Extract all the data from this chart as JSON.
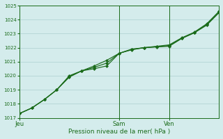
{
  "title": "",
  "xlabel": "Pression niveau de la mer( hPa )",
  "background_color": "#d4ecec",
  "grid_color": "#b8d8d8",
  "line_color": "#1a6b1a",
  "ylim": [
    1017,
    1025
  ],
  "xlim": [
    0,
    48
  ],
  "yticks": [
    1017,
    1018,
    1019,
    1020,
    1021,
    1022,
    1023,
    1024,
    1025
  ],
  "xtick_positions": [
    0,
    24,
    36
  ],
  "xtick_labels": [
    "Jeu",
    "Sam",
    "Ven"
  ],
  "vline_positions": [
    24,
    36
  ],
  "series1_x": [
    0,
    3,
    6,
    9,
    12,
    15,
    18,
    21,
    24,
    27,
    30,
    33,
    36,
    39,
    42,
    45,
    48
  ],
  "series1_y": [
    1017.3,
    1017.7,
    1018.3,
    1019.0,
    1019.9,
    1020.35,
    1020.7,
    1021.1,
    1021.6,
    1021.85,
    1022.0,
    1022.1,
    1022.2,
    1022.7,
    1023.1,
    1023.7,
    1024.6
  ],
  "series2_x": [
    0,
    3,
    6,
    9,
    12,
    15,
    18,
    21,
    24,
    27,
    30,
    33,
    36,
    39,
    42,
    45,
    48
  ],
  "series2_y": [
    1017.3,
    1017.7,
    1018.3,
    1019.0,
    1020.0,
    1020.35,
    1020.5,
    1020.7,
    1021.6,
    1021.9,
    1022.0,
    1022.05,
    1022.1,
    1022.65,
    1023.05,
    1023.6,
    1024.5
  ],
  "series3_x": [
    0,
    3,
    6,
    9,
    12,
    15,
    18,
    21,
    24,
    27,
    30,
    33,
    36,
    39,
    42,
    45,
    48
  ],
  "series3_y": [
    1017.3,
    1017.7,
    1018.3,
    1019.0,
    1019.95,
    1020.35,
    1020.6,
    1020.9,
    1021.6,
    1021.87,
    1022.0,
    1022.07,
    1022.15,
    1022.67,
    1023.07,
    1023.65,
    1024.55
  ],
  "figsize": [
    3.2,
    2.0
  ],
  "dpi": 100
}
